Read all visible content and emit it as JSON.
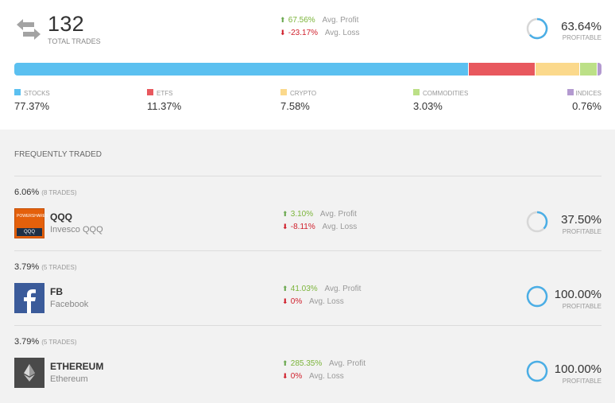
{
  "summary": {
    "total_trades": "132",
    "total_trades_label": "TOTAL TRADES",
    "avg_profit": "67.56%",
    "avg_profit_label": "Avg. Profit",
    "avg_loss": "-23.17%",
    "avg_loss_label": "Avg. Loss",
    "profitable_pct": "63.64%",
    "profitable_label": "PROFITABLE",
    "profitable_fraction": 0.6364
  },
  "allocation": [
    {
      "name": "STOCKS",
      "value": "77.37%",
      "share": 77.37,
      "color": "#5bc0f0"
    },
    {
      "name": "ETFS",
      "value": "11.37%",
      "share": 11.37,
      "color": "#e8585e"
    },
    {
      "name": "CRYPTO",
      "value": "7.58%",
      "share": 7.58,
      "color": "#fbd98c"
    },
    {
      "name": "COMMODITIES",
      "value": "3.03%",
      "share": 3.03,
      "color": "#bce087"
    },
    {
      "name": "INDICES",
      "value": "0.76%",
      "share": 0.76,
      "color": "#b39ad0"
    }
  ],
  "frequent": {
    "title": "FREQUENTLY TRADED",
    "items": [
      {
        "share": "6.06%",
        "trades": "(8 TRADES)",
        "ticker": "QQQ",
        "name": "Invesco QQQ",
        "logo_icon": "powershares-logo-icon",
        "logo_text_top": "POWERSHARES",
        "logo_text_bottom": "QQQ",
        "avg_profit": "3.10%",
        "avg_profit_label": "Avg. Profit",
        "avg_loss": "-8.11%",
        "avg_loss_label": "Avg. Loss",
        "profitable": "37.50%",
        "profitable_label": "PROFITABLE",
        "profitable_fraction": 0.375
      },
      {
        "share": "3.79%",
        "trades": "(5 TRADES)",
        "ticker": "FB",
        "name": "Facebook",
        "logo_icon": "facebook-logo-icon",
        "avg_profit": "41.03%",
        "avg_profit_label": "Avg. Profit",
        "avg_loss": "0%",
        "avg_loss_label": "Avg. Loss",
        "profitable": "100.00%",
        "profitable_label": "PROFITABLE",
        "profitable_fraction": 1.0
      },
      {
        "share": "3.79%",
        "trades": "(5 TRADES)",
        "ticker": "ETHEREUM",
        "name": "Ethereum",
        "logo_icon": "ethereum-logo-icon",
        "avg_profit": "285.35%",
        "avg_profit_label": "Avg. Profit",
        "avg_loss": "0%",
        "avg_loss_label": "Avg. Loss",
        "profitable": "100.00%",
        "profitable_label": "PROFITABLE",
        "profitable_fraction": 1.0
      }
    ]
  },
  "colors": {
    "profit": "#7bb43a",
    "loss": "#d0202c",
    "pie_fill": "#4aaee6",
    "pie_track": "#d7d7d7"
  },
  "icons": {
    "trades": "swap-arrows-icon",
    "up": "arrow-up-icon",
    "down": "arrow-down-icon"
  }
}
